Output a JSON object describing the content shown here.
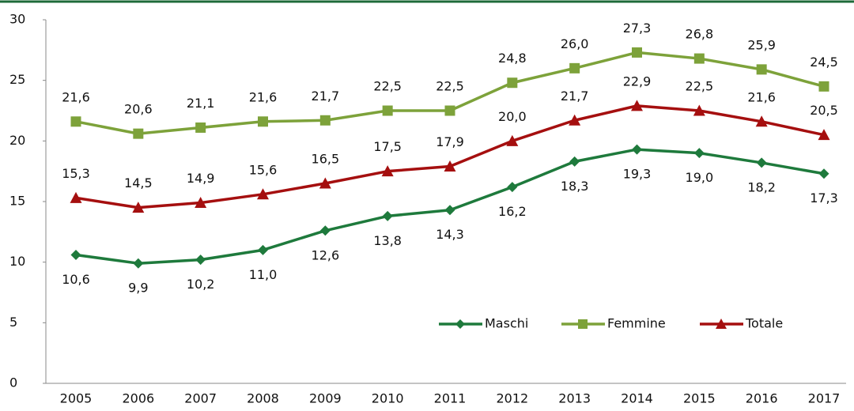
{
  "chart_data": {
    "type": "line",
    "categories": [
      "2005",
      "2006",
      "2007",
      "2008",
      "2009",
      "2010",
      "2011",
      "2012",
      "2013",
      "2014",
      "2015",
      "2016",
      "2017"
    ],
    "series": [
      {
        "name": "Maschi",
        "color": "#1e7a3c",
        "marker": "diamond",
        "values": [
          10.6,
          9.9,
          10.2,
          11.0,
          12.6,
          13.8,
          14.3,
          16.2,
          18.3,
          19.3,
          19.0,
          18.2,
          17.3
        ],
        "value_labels": [
          "10,6",
          "9,9",
          "10,2",
          "11,0",
          "12,6",
          "13,8",
          "14,3",
          "16,2",
          "18,3",
          "19,3",
          "19,0",
          "18,2",
          "17,3"
        ]
      },
      {
        "name": "Femmine",
        "color": "#7da23a",
        "marker": "square",
        "values": [
          21.6,
          20.6,
          21.1,
          21.6,
          21.7,
          22.5,
          22.5,
          24.8,
          26.0,
          27.3,
          26.8,
          25.9,
          24.5
        ],
        "value_labels": [
          "21,6",
          "20,6",
          "21,1",
          "21,6",
          "21,7",
          "22,5",
          "22,5",
          "24,8",
          "26,0",
          "27,3",
          "26,8",
          "25,9",
          "24,5"
        ]
      },
      {
        "name": "Totale",
        "color": "#a50f0f",
        "marker": "triangle",
        "values": [
          15.3,
          14.5,
          14.9,
          15.6,
          16.5,
          17.5,
          17.9,
          20.0,
          21.7,
          22.9,
          22.5,
          21.6,
          20.5
        ],
        "value_labels": [
          "15,3",
          "14,5",
          "14,9",
          "15,6",
          "16,5",
          "17,5",
          "17,9",
          "20,0",
          "21,7",
          "22,9",
          "22,5",
          "21,6",
          "20,5"
        ]
      }
    ],
    "ylim": [
      0,
      30
    ],
    "yticks": [
      0,
      5,
      10,
      15,
      20,
      25,
      30
    ],
    "grid": false,
    "legend": "lower right"
  }
}
